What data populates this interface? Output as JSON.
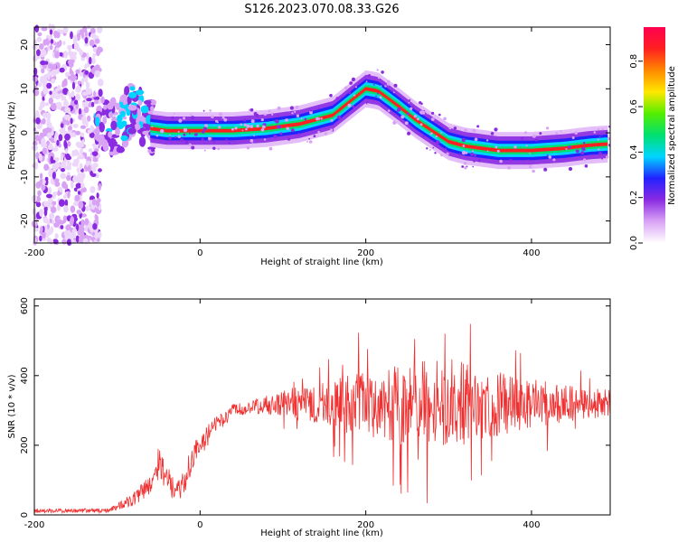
{
  "title": "S126.2023.070.08.33.G26",
  "chart_data": [
    {
      "type": "heatmap",
      "xlabel": "Height of straight line (km)",
      "ylabel": "Frequency (Hz)",
      "xlim": [
        -200,
        495
      ],
      "ylim": [
        -25,
        24
      ],
      "xticks": [
        -200,
        0,
        200,
        400
      ],
      "yticks": [
        -20,
        -10,
        0,
        10,
        20
      ],
      "colorbar": {
        "label": "Normalized spectral amplitude",
        "range": [
          0,
          0.95
        ],
        "ticks": [
          0.0,
          0.2,
          0.4,
          0.6,
          0.8
        ],
        "colors": [
          "#ffffff",
          "#d9a3f5",
          "#8a2be2",
          "#2222ff",
          "#00d5ff",
          "#00e070",
          "#55ee00",
          "#ffe800",
          "#ff8800",
          "#ff2020",
          "#ff0050"
        ]
      },
      "ridge": {
        "x": [
          -120,
          -100,
          -80,
          -60,
          -40,
          -20,
          0,
          40,
          80,
          120,
          160,
          180,
          200,
          215,
          240,
          260,
          280,
          300,
          320,
          340,
          360,
          400,
          440,
          470,
          495
        ],
        "freq": [
          2,
          1,
          6,
          1,
          0.5,
          0.5,
          0.5,
          0.5,
          1,
          2,
          4,
          7,
          10,
          9.5,
          6,
          3,
          0.5,
          -2,
          -3,
          -3.5,
          -4,
          -4,
          -3.5,
          -2.8,
          -2.5
        ]
      }
    },
    {
      "type": "line",
      "xlabel": "Height of straight line (km)",
      "ylabel": "SNR (10 * v/v)",
      "xlim": [
        -200,
        495
      ],
      "ylim": [
        0,
        620
      ],
      "xticks": [
        -200,
        0,
        200,
        400
      ],
      "yticks": [
        0,
        200,
        400,
        600
      ],
      "color": "#f03030",
      "envelope": {
        "x": [
          -200,
          -150,
          -110,
          -95,
          -80,
          -60,
          -50,
          -40,
          -30,
          -20,
          -10,
          0,
          20,
          40,
          60,
          80,
          100,
          150,
          200,
          250,
          300,
          350,
          400,
          450,
          495
        ],
        "mean": [
          12,
          12,
          12,
          30,
          45,
          90,
          150,
          110,
          60,
          90,
          160,
          200,
          260,
          300,
          310,
          315,
          320,
          320,
          315,
          320,
          320,
          320,
          320,
          320,
          320
        ],
        "spread": [
          6,
          6,
          6,
          12,
          20,
          30,
          45,
          40,
          30,
          40,
          40,
          35,
          25,
          20,
          20,
          30,
          40,
          60,
          100,
          120,
          130,
          100,
          70,
          50,
          40
        ]
      }
    }
  ]
}
